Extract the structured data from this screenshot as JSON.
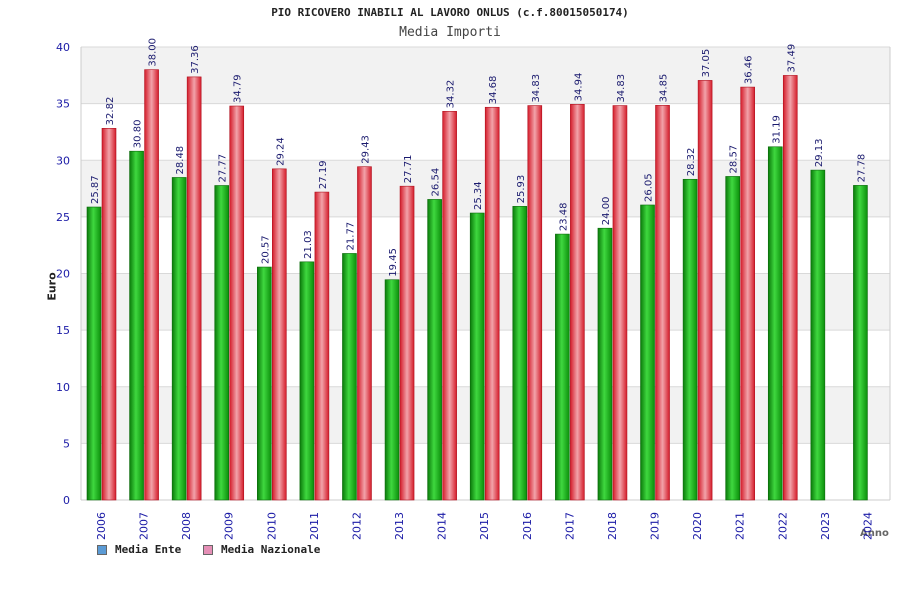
{
  "colors": {
    "ente": "#1db11d",
    "nazionale": "#e8303e",
    "legend_ente": "#5b9bd5",
    "legend_nazionale": "#e58fb6",
    "band": "#f2f2f2",
    "axis_text": "#1a1aa6",
    "label_text": "#1a1a6e"
  },
  "chart_data": {
    "type": "bar",
    "title": "PIO RICOVERO INABILI AL LAVORO ONLUS (c.f.80015050174)",
    "subtitle": "Media Importi",
    "xlabel": "Anno",
    "ylabel": "Euro",
    "ylim": [
      0,
      40
    ],
    "yticks": [
      0,
      5,
      10,
      15,
      20,
      25,
      30,
      35,
      40
    ],
    "categories": [
      "2006",
      "2007",
      "2008",
      "2009",
      "2010",
      "2011",
      "2012",
      "2013",
      "2014",
      "2015",
      "2016",
      "2017",
      "2018",
      "2019",
      "2020",
      "2021",
      "2022",
      "2023",
      "2024"
    ],
    "series": [
      {
        "name": "Media Ente",
        "values": [
          25.87,
          30.8,
          28.48,
          27.77,
          20.57,
          21.03,
          21.77,
          19.45,
          26.54,
          25.34,
          25.93,
          23.48,
          24.0,
          26.05,
          28.32,
          28.57,
          31.19,
          29.13,
          27.78
        ],
        "labels": [
          "25.87",
          "30.80",
          "28.48",
          "27.77",
          "20.57",
          "21.03",
          "21.77",
          "19.45",
          "26.54",
          "25.34",
          "25.93",
          "23.48",
          "24.00",
          "26.05",
          "28.32",
          "28.57",
          "31.19",
          "29.13",
          "27.78"
        ]
      },
      {
        "name": "Media Nazionale",
        "values": [
          32.82,
          38.0,
          37.36,
          34.79,
          29.24,
          27.19,
          29.43,
          27.71,
          34.32,
          34.68,
          34.83,
          34.94,
          34.83,
          34.85,
          37.05,
          36.46,
          37.49,
          null,
          null
        ],
        "labels": [
          "32.82",
          "38.00",
          "37.36",
          "34.79",
          "29.24",
          "27.19",
          "29.43",
          "27.71",
          "34.32",
          "34.68",
          "34.83",
          "34.94",
          "34.83",
          "34.85",
          "37.05",
          "36.46",
          "37.49",
          "",
          ""
        ]
      }
    ],
    "legend": {
      "position": "bottom-left"
    }
  }
}
